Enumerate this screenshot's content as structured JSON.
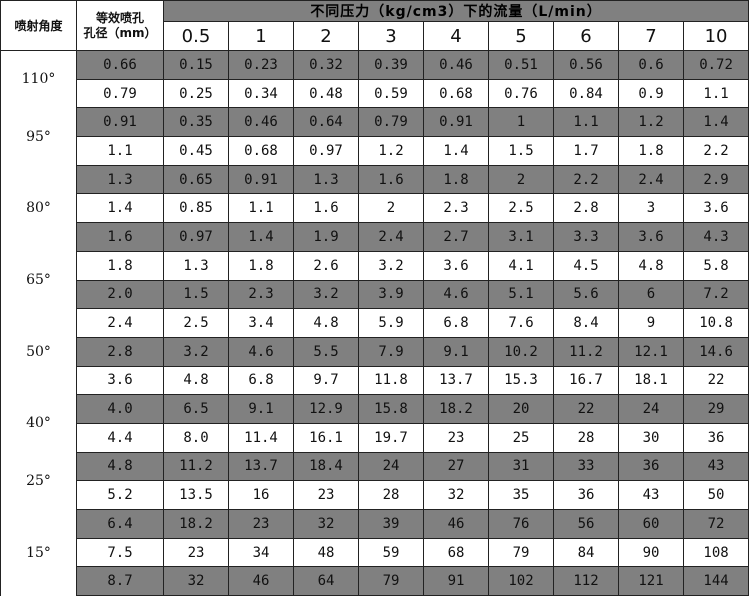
{
  "header": {
    "angle_label": "喷射角度",
    "diameter_label_line1": "等效喷孔",
    "diameter_label_line2": "孔径（mm）",
    "flow_label": "不同压力（kg/cm3）下的流量（L/min）",
    "pressures": [
      "0.5",
      "1",
      "2",
      "3",
      "4",
      "5",
      "6",
      "7",
      "10"
    ]
  },
  "groups": [
    {
      "angle": "110°",
      "rows": [
        {
          "d": "0.66",
          "flows": [
            "0.15",
            "0.23",
            "0.32",
            "0.39",
            "0.46",
            "0.51",
            "0.56",
            "0.6",
            "0.72"
          ]
        },
        {
          "d": "0.79",
          "flows": [
            "0.25",
            "0.34",
            "0.48",
            "0.59",
            "0.68",
            "0.76",
            "0.84",
            "0.9",
            "1.1"
          ]
        }
      ]
    },
    {
      "angle": "95°",
      "rows": [
        {
          "d": "0.91",
          "flows": [
            "0.35",
            "0.46",
            "0.64",
            "0.79",
            "0.91",
            "1",
            "1.1",
            "1.2",
            "1.4"
          ]
        },
        {
          "d": "1.1",
          "flows": [
            "0.45",
            "0.68",
            "0.97",
            "1.2",
            "1.4",
            "1.5",
            "1.7",
            "1.8",
            "2.2"
          ]
        }
      ]
    },
    {
      "angle": "80°",
      "rows": [
        {
          "d": "1.3",
          "flows": [
            "0.65",
            "0.91",
            "1.3",
            "1.6",
            "1.8",
            "2",
            "2.2",
            "2.4",
            "2.9"
          ]
        },
        {
          "d": "1.4",
          "flows": [
            "0.85",
            "1.1",
            "1.6",
            "2",
            "2.3",
            "2.5",
            "2.8",
            "3",
            "3.6"
          ]
        },
        {
          "d": "1.6",
          "flows": [
            "0.97",
            "1.4",
            "1.9",
            "2.4",
            "2.7",
            "3.1",
            "3.3",
            "3.6",
            "4.3"
          ]
        }
      ]
    },
    {
      "angle": "65°",
      "rows": [
        {
          "d": "1.8",
          "flows": [
            "1.3",
            "1.8",
            "2.6",
            "3.2",
            "3.6",
            "4.1",
            "4.5",
            "4.8",
            "5.8"
          ]
        },
        {
          "d": "2.0",
          "flows": [
            "1.5",
            "2.3",
            "3.2",
            "3.9",
            "4.6",
            "5.1",
            "5.6",
            "6",
            "7.2"
          ]
        }
      ]
    },
    {
      "angle": "50°",
      "rows": [
        {
          "d": "2.4",
          "flows": [
            "2.5",
            "3.4",
            "4.8",
            "5.9",
            "6.8",
            "7.6",
            "8.4",
            "9",
            "10.8"
          ]
        },
        {
          "d": "2.8",
          "flows": [
            "3.2",
            "4.6",
            "5.5",
            "7.9",
            "9.1",
            "10.2",
            "11.2",
            "12.1",
            "14.6"
          ]
        },
        {
          "d": "3.6",
          "flows": [
            "4.8",
            "6.8",
            "9.7",
            "11.8",
            "13.7",
            "15.3",
            "16.7",
            "18.1",
            "22"
          ]
        }
      ]
    },
    {
      "angle": "40°",
      "rows": [
        {
          "d": "4.0",
          "flows": [
            "6.5",
            "9.1",
            "12.9",
            "15.8",
            "18.2",
            "20",
            "22",
            "24",
            "29"
          ]
        },
        {
          "d": "4.4",
          "flows": [
            "8.0",
            "11.4",
            "16.1",
            "19.7",
            "23",
            "25",
            "28",
            "30",
            "36"
          ]
        }
      ]
    },
    {
      "angle": "25°",
      "rows": [
        {
          "d": "4.8",
          "flows": [
            "11.2",
            "13.7",
            "18.4",
            "24",
            "27",
            "31",
            "33",
            "36",
            "43"
          ]
        },
        {
          "d": "5.2",
          "flows": [
            "13.5",
            "16",
            "23",
            "28",
            "32",
            "35",
            "36",
            "43",
            "50"
          ]
        }
      ]
    },
    {
      "angle": "15°",
      "rows": [
        {
          "d": "6.4",
          "flows": [
            "18.2",
            "23",
            "32",
            "39",
            "46",
            "76",
            "56",
            "60",
            "72"
          ]
        },
        {
          "d": "7.5",
          "flows": [
            "23",
            "34",
            "48",
            "59",
            "68",
            "79",
            "84",
            "90",
            "108"
          ]
        },
        {
          "d": "8.7",
          "flows": [
            "32",
            "46",
            "64",
            "79",
            "91",
            "102",
            "112",
            "121",
            "144"
          ]
        }
      ]
    }
  ]
}
